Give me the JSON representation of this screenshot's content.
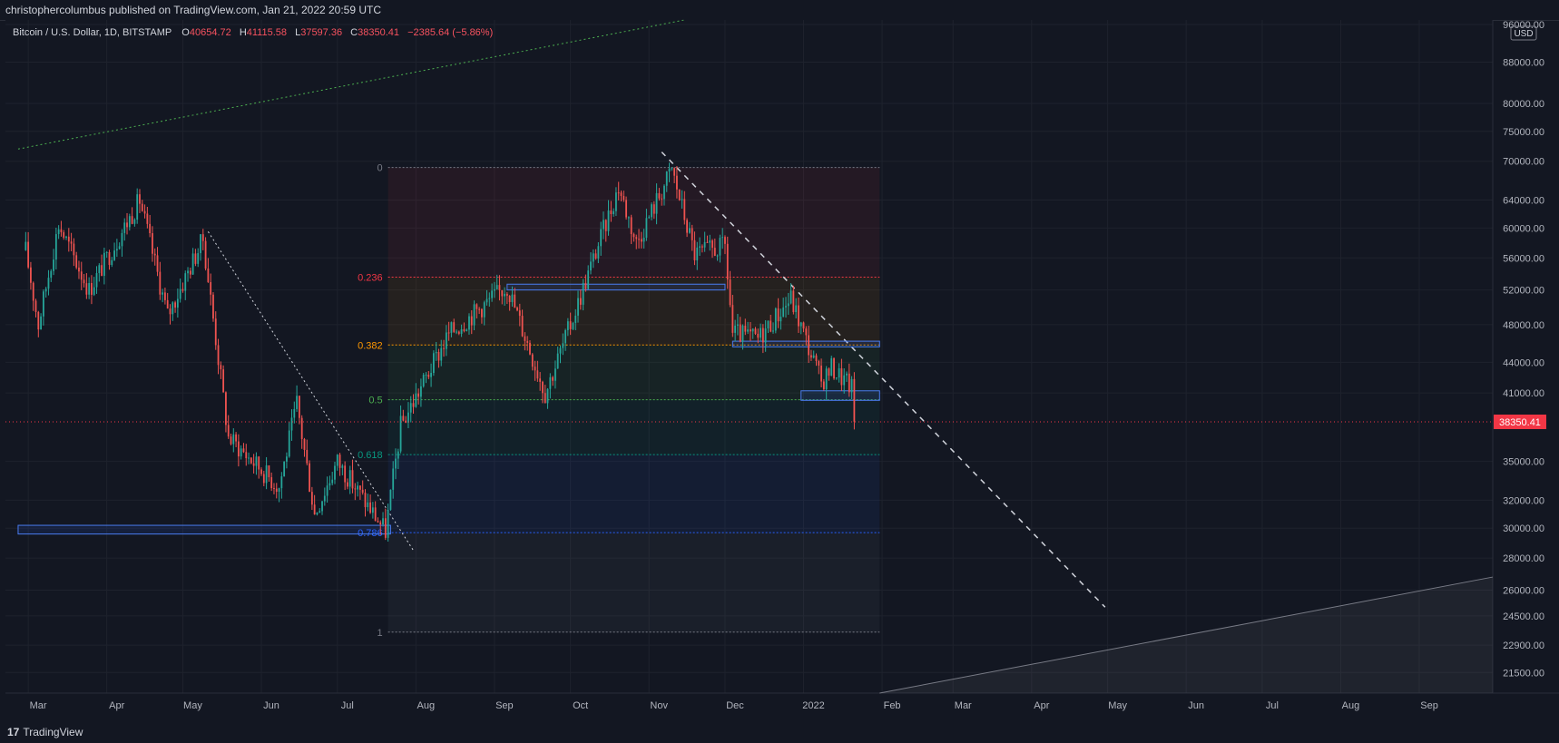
{
  "header": {
    "published": "christophercolumbus published on TradingView.com, Jan 21, 2022 20:59 UTC"
  },
  "symbol": {
    "name": "Bitcoin / U.S. Dollar, 1D, BITSTAMP",
    "open_label": "O",
    "open": "40654.72",
    "high_label": "H",
    "high": "41115.58",
    "low_label": "L",
    "low": "37597.36",
    "close_label": "C",
    "close": "38350.41",
    "change": "−2385.64 (−5.86%)"
  },
  "footer": {
    "brand": "TradingView"
  },
  "colors": {
    "background": "#131722",
    "up": "#26a69a",
    "down": "#ef5350",
    "grid": "#1e222d",
    "price_tag": "#f23645"
  },
  "chart_data": {
    "type": "candlestick",
    "title": "",
    "xlabel": "",
    "ylabel": "",
    "currency": "USD",
    "scale": "log",
    "ylim": [
      20500,
      97000
    ],
    "y_ticks": [
      "96000.00",
      "88000.00",
      "80000.00",
      "75000.00",
      "70000.00",
      "64000.00",
      "60000.00",
      "56000.00",
      "52000.00",
      "48000.00",
      "44000.00",
      "41000.00",
      "38350.41",
      "35000.00",
      "32000.00",
      "30000.00",
      "28000.00",
      "26000.00",
      "24500.00",
      "22900.00",
      "21500.00"
    ],
    "x_ticks": [
      "Mar",
      "Apr",
      "May",
      "Jun",
      "Jul",
      "Aug",
      "Sep",
      "Oct",
      "Nov",
      "Dec",
      "2022",
      "Feb",
      "Mar",
      "Apr",
      "May",
      "Jun",
      "Jul",
      "Aug",
      "Sep"
    ],
    "last_price": "38350.41",
    "price_path": [
      [
        "2021-02-28",
        57000
      ],
      [
        "2021-03-05",
        48000
      ],
      [
        "2021-03-13",
        60500
      ],
      [
        "2021-03-25",
        52000
      ],
      [
        "2021-04-14",
        64000
      ],
      [
        "2021-04-25",
        49000
      ],
      [
        "2021-05-09",
        58500
      ],
      [
        "2021-05-19",
        37000
      ],
      [
        "2021-06-08",
        33000
      ],
      [
        "2021-06-15",
        40000
      ],
      [
        "2021-06-22",
        31000
      ],
      [
        "2021-07-01",
        35000
      ],
      [
        "2021-07-20",
        29800
      ],
      [
        "2021-07-26",
        38000
      ],
      [
        "2021-08-14",
        47000
      ],
      [
        "2021-09-06",
        52500
      ],
      [
        "2021-09-21",
        41000
      ],
      [
        "2021-10-01",
        48000
      ],
      [
        "2021-10-20",
        66000
      ],
      [
        "2021-10-27",
        58000
      ],
      [
        "2021-11-10",
        68700
      ],
      [
        "2021-11-19",
        56500
      ],
      [
        "2021-12-01",
        57500
      ],
      [
        "2021-12-04",
        47000
      ],
      [
        "2021-12-14",
        46500
      ],
      [
        "2021-12-27",
        51000
      ],
      [
        "2022-01-08",
        42000
      ],
      [
        "2022-01-12",
        43500
      ],
      [
        "2022-01-20",
        41500
      ],
      [
        "2022-01-21",
        38350
      ]
    ],
    "fibonacci": {
      "levels": [
        "0",
        "0.236",
        "0.382",
        "0.5",
        "0.618",
        "0.786",
        "1"
      ],
      "ratios": [
        0,
        0.236,
        0.382,
        0.5,
        0.618,
        0.786,
        1
      ],
      "high": 69000,
      "low": 23600,
      "colors": [
        "#787b86",
        "#f23645",
        "#ff9800",
        "#4caf50",
        "#089981",
        "#2962ff",
        "#787b86"
      ]
    },
    "horizontal_zones": [
      {
        "from": "2021-02-25",
        "to": "2021-07-22",
        "low": 29600,
        "high": 30200
      },
      {
        "from": "2021-09-06",
        "to": "2021-12-01",
        "low": 52000,
        "high": 52700
      },
      {
        "from": "2021-12-04",
        "to": "2022-01-31",
        "low": 45600,
        "high": 46200
      },
      {
        "from": "2021-12-31",
        "to": "2022-01-31",
        "low": 40300,
        "high": 41200
      }
    ],
    "trendlines": [
      {
        "style": "dotted",
        "color": "#d1d4dc",
        "from": [
          "2021-05-11",
          59500
        ],
        "to": [
          "2021-07-31",
          28500
        ]
      },
      {
        "style": "dashed",
        "color": "#d1d4dc",
        "from": [
          "2021-11-06",
          71500
        ],
        "to": [
          "2022-04-30",
          25000
        ]
      },
      {
        "style": "dotted",
        "color": "#4caf50",
        "from": [
          "2021-02-25",
          72000
        ],
        "to": [
          "2021-11-15",
          97000
        ]
      },
      {
        "style": "solid",
        "color": "#787b86",
        "from": [
          "2022-01-31",
          20500
        ],
        "to": [
          "2022-09-30",
          26800
        ]
      }
    ]
  }
}
